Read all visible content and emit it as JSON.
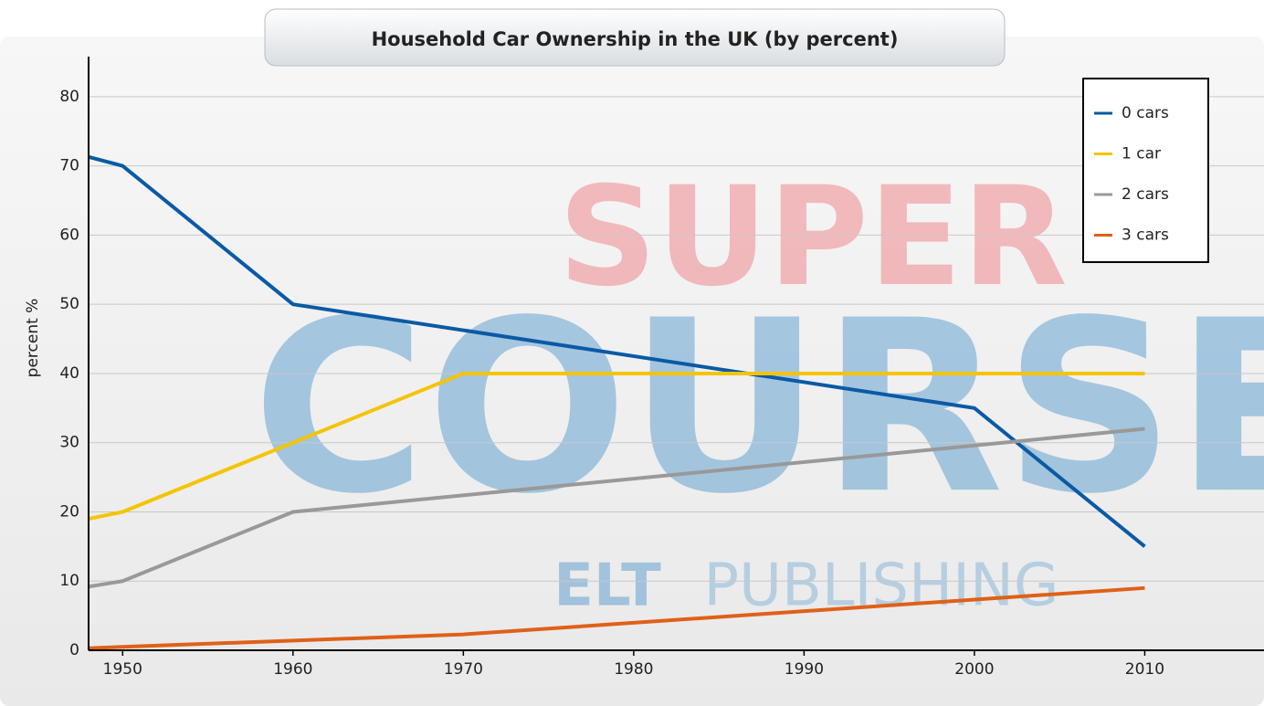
{
  "chart_data": {
    "type": "line",
    "title": "Household Car Ownership in the UK (by percent)",
    "ylabel": "percent %",
    "xlim": [
      1948,
      2017
    ],
    "xticks": [
      1950,
      1960,
      1970,
      1980,
      1990,
      2000,
      2010
    ],
    "ylim": [
      0,
      85
    ],
    "yticks": [
      0,
      10,
      20,
      30,
      40,
      50,
      60,
      70,
      80
    ],
    "grid": true,
    "legend": "upper right",
    "series": [
      {
        "name": "0 cars",
        "color": "#0a5aa5",
        "x": [
          1948,
          1950,
          1960,
          2000,
          2010
        ],
        "values": [
          71.3,
          70,
          50,
          35,
          15
        ]
      },
      {
        "name": "1 car",
        "color": "#f5c400",
        "x": [
          1948,
          1950,
          1960,
          1970,
          2010
        ],
        "values": [
          19,
          20,
          30,
          40,
          40
        ]
      },
      {
        "name": "2 cars",
        "color": "#999999",
        "x": [
          1948,
          1950,
          1960,
          2010
        ],
        "values": [
          9.2,
          10,
          20,
          32
        ]
      },
      {
        "name": "3 cars",
        "color": "#e06018",
        "x": [
          1948,
          1950,
          1970,
          2010
        ],
        "values": [
          0.3,
          0.5,
          2.3,
          9
        ]
      }
    ],
    "watermark": [
      "SUPER",
      "COURSE",
      "ELT",
      "PUBLISHING"
    ]
  }
}
